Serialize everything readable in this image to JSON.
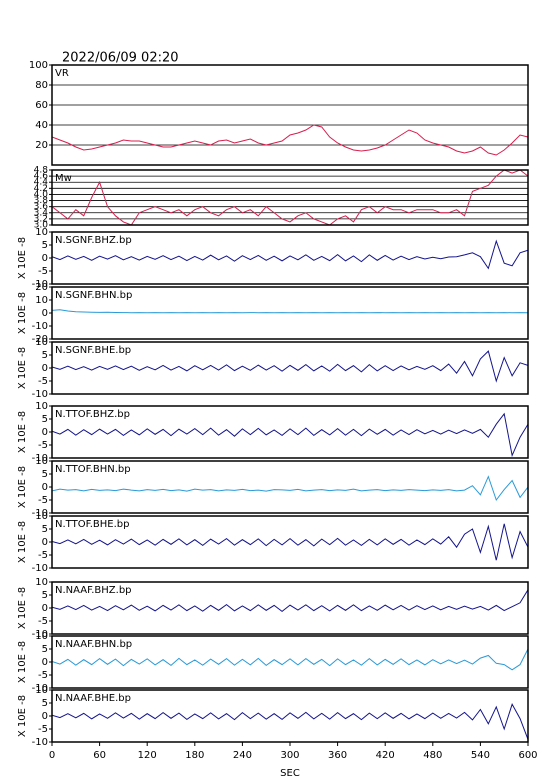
{
  "chart_data": {
    "type": "line",
    "title": "2022/06/09 02:20",
    "xlabel": "SEC",
    "xlim": [
      0,
      600
    ],
    "xticks": [
      0,
      60,
      120,
      180,
      240,
      300,
      360,
      420,
      480,
      540,
      600
    ],
    "x": [
      0,
      10,
      20,
      30,
      40,
      50,
      60,
      70,
      80,
      90,
      100,
      110,
      120,
      130,
      140,
      150,
      160,
      170,
      180,
      190,
      200,
      210,
      220,
      230,
      240,
      250,
      260,
      270,
      280,
      290,
      300,
      310,
      320,
      330,
      340,
      350,
      360,
      370,
      380,
      390,
      400,
      410,
      420,
      430,
      440,
      450,
      460,
      470,
      480,
      490,
      500,
      510,
      520,
      530,
      540,
      550,
      560,
      570,
      580,
      590,
      600
    ],
    "panels": [
      {
        "label": "VR",
        "color": "#d81e4e",
        "ylim": [
          0,
          100
        ],
        "yticks": [
          20,
          40,
          60,
          80,
          100
        ],
        "grid": true,
        "values": [
          28,
          25,
          22,
          18,
          15,
          16,
          18,
          20,
          22,
          25,
          24,
          24,
          22,
          20,
          18,
          18,
          20,
          22,
          24,
          22,
          20,
          24,
          25,
          22,
          24,
          26,
          22,
          20,
          22,
          24,
          30,
          32,
          35,
          40,
          38,
          28,
          22,
          18,
          15,
          14,
          15,
          17,
          20,
          25,
          30,
          35,
          32,
          25,
          22,
          20,
          18,
          14,
          12,
          14,
          18,
          12,
          10,
          15,
          22,
          30,
          28
        ]
      },
      {
        "label": "Mw",
        "color": "#d81e4e",
        "ylim": [
          3.0,
          4.8
        ],
        "yticks": [
          {
            "value": 3,
            "label": "3.0"
          },
          3.2,
          3.4,
          3.6,
          3.8,
          {
            "value": 4,
            "label": "4.0"
          },
          4.2,
          4.4,
          4.6,
          4.8
        ],
        "grid": true,
        "values": [
          3.6,
          3.4,
          3.2,
          3.5,
          3.3,
          3.9,
          4.4,
          3.6,
          3.3,
          3.1,
          3.0,
          3.4,
          3.5,
          3.6,
          3.5,
          3.4,
          3.5,
          3.3,
          3.5,
          3.6,
          3.4,
          3.3,
          3.5,
          3.6,
          3.4,
          3.5,
          3.3,
          3.6,
          3.4,
          3.2,
          3.1,
          3.3,
          3.4,
          3.2,
          3.1,
          3.0,
          3.2,
          3.3,
          3.1,
          3.5,
          3.6,
          3.4,
          3.6,
          3.5,
          3.5,
          3.4,
          3.5,
          3.5,
          3.5,
          3.4,
          3.4,
          3.5,
          3.3,
          4.1,
          4.2,
          4.3,
          4.6,
          4.8,
          4.7,
          4.8,
          4.6
        ]
      },
      {
        "label": "N.SGNF.BHZ.bp",
        "ylabel": "X 10E -8",
        "color": "#14148c",
        "ylim": [
          -10,
          10
        ],
        "yticks": [
          -10,
          -5,
          0,
          5,
          10
        ],
        "grid": false,
        "values": [
          0.5,
          -0.6,
          0.8,
          -0.5,
          0.6,
          -0.9,
          0.7,
          -0.4,
          0.9,
          -0.7,
          0.5,
          -0.8,
          0.6,
          -0.5,
          0.9,
          -0.6,
          0.7,
          -1.0,
          0.6,
          -0.8,
          1.1,
          -0.7,
          0.8,
          -1.2,
          0.9,
          -0.6,
          1.0,
          -0.9,
          0.7,
          -1.1,
          0.8,
          -0.7,
          1.2,
          -0.9,
          0.6,
          -1.0,
          1.3,
          -1.1,
          0.8,
          -1.4,
          1.2,
          -0.9,
          1.0,
          -0.8,
          0.7,
          -0.6,
          0.5,
          -0.4,
          0.3,
          -0.3,
          0.4,
          0.5,
          1.2,
          2.0,
          0.5,
          -4.0,
          6.5,
          -2.0,
          -3.0,
          2.0,
          3.0
        ]
      },
      {
        "label": "N.SGNF.BHN.bp",
        "ylabel": "X 10E -8",
        "color": "#2a9ad8",
        "ylim": [
          -20,
          20
        ],
        "yticks": [
          -20,
          -10,
          0,
          10,
          20
        ],
        "grid": false,
        "values": [
          2.0,
          2.5,
          1.5,
          1.0,
          0.8,
          0.6,
          0.5,
          0.6,
          0.4,
          0.3,
          0.2,
          0.3,
          0.2,
          0.3,
          0.2,
          0.3,
          0.2,
          0.3,
          0.2,
          0.3,
          0.2,
          0.3,
          0.2,
          0.3,
          0.2,
          0.3,
          0.2,
          0.3,
          0.2,
          0.3,
          0.2,
          0.3,
          0.2,
          0.3,
          0.2,
          0.3,
          0.2,
          0.3,
          0.2,
          0.3,
          0.2,
          0.3,
          0.2,
          0.3,
          0.2,
          0.3,
          0.2,
          0.3,
          0.2,
          0.3,
          0.2,
          0.3,
          0.2,
          0.3,
          0.2,
          0.3,
          0.2,
          0.3,
          0.2,
          0.3,
          0.2
        ]
      },
      {
        "label": "N.SGNF.BHE.bp",
        "ylabel": "X 10E -8",
        "color": "#14148c",
        "ylim": [
          -10,
          10
        ],
        "yticks": [
          -10,
          -5,
          0,
          5,
          10
        ],
        "grid": false,
        "values": [
          0.4,
          -0.5,
          0.7,
          -0.6,
          0.5,
          -0.8,
          0.6,
          -0.5,
          0.8,
          -0.6,
          0.7,
          -0.9,
          0.5,
          -0.7,
          1.0,
          -0.8,
          0.6,
          -1.1,
          0.9,
          -0.7,
          1.0,
          -0.8,
          1.2,
          -1.0,
          0.7,
          -0.9,
          1.1,
          -0.8,
          0.9,
          -1.2,
          1.0,
          -0.9,
          1.3,
          -1.1,
          0.8,
          -1.2,
          1.4,
          -1.0,
          0.9,
          -1.5,
          1.3,
          -1.1,
          0.9,
          -1.0,
          0.8,
          -0.7,
          0.6,
          -0.5,
          0.9,
          -1.0,
          1.5,
          -2.0,
          2.5,
          -3.0,
          3.5,
          6.5,
          -5.0,
          4.0,
          -3.0,
          2.0,
          1.0
        ]
      },
      {
        "label": "N.TTOF.BHZ.bp",
        "ylabel": "X 10E -8",
        "color": "#14148c",
        "ylim": [
          -10,
          10
        ],
        "yticks": [
          -10,
          -5,
          0,
          5,
          10
        ],
        "grid": false,
        "values": [
          0.3,
          -0.8,
          1.0,
          -1.2,
          0.9,
          -1.0,
          1.1,
          -0.8,
          1.0,
          -1.3,
          0.8,
          -1.1,
          1.2,
          -0.9,
          1.0,
          -1.4,
          1.1,
          -0.8,
          1.3,
          -1.0,
          1.5,
          -1.2,
          0.9,
          -1.6,
          1.2,
          -1.0,
          1.4,
          -1.1,
          0.8,
          -1.3,
          1.2,
          -1.0,
          1.5,
          -1.3,
          0.9,
          -1.1,
          1.3,
          -1.2,
          1.0,
          -1.4,
          1.1,
          -0.9,
          1.0,
          -1.2,
          0.8,
          -1.0,
          0.9,
          -0.7,
          0.6,
          -0.8,
          0.7,
          -0.6,
          0.8,
          -0.5,
          1.0,
          -2.0,
          3.0,
          7.0,
          -9.0,
          -2.0,
          3.0
        ]
      },
      {
        "label": "N.TTOF.BHN.bp",
        "ylabel": "X 10E -8",
        "color": "#2a9ad8",
        "ylim": [
          -10,
          10
        ],
        "yticks": [
          -10,
          -5,
          0,
          5,
          10
        ],
        "grid": false,
        "values": [
          -1.5,
          -0.8,
          -1.2,
          -1.0,
          -1.5,
          -0.9,
          -1.3,
          -1.1,
          -1.4,
          -0.8,
          -1.2,
          -1.5,
          -1.0,
          -1.3,
          -0.9,
          -1.4,
          -1.1,
          -1.6,
          -0.8,
          -1.2,
          -1.0,
          -1.5,
          -1.1,
          -1.3,
          -0.9,
          -1.4,
          -1.2,
          -1.6,
          -1.0,
          -1.1,
          -1.3,
          -0.9,
          -1.5,
          -1.2,
          -1.0,
          -1.4,
          -1.1,
          -1.3,
          -0.8,
          -1.5,
          -1.2,
          -1.0,
          -1.4,
          -1.1,
          -1.3,
          -1.0,
          -1.2,
          -1.4,
          -1.1,
          -1.3,
          -1.0,
          -1.5,
          -1.2,
          0.5,
          -3.0,
          4.0,
          -5.0,
          -1.0,
          2.5,
          -4.0,
          0.0
        ]
      },
      {
        "label": "N.TTOF.BHE.bp",
        "ylabel": "X 10E -8",
        "color": "#14148c",
        "ylim": [
          -10,
          10
        ],
        "yticks": [
          -10,
          -5,
          0,
          5,
          10
        ],
        "grid": false,
        "values": [
          0.2,
          -0.6,
          0.8,
          -0.7,
          1.0,
          -0.9,
          0.7,
          -1.1,
          0.9,
          -0.8,
          1.1,
          -1.0,
          0.8,
          -1.2,
          1.0,
          -0.9,
          1.2,
          -1.1,
          0.9,
          -1.3,
          1.1,
          -0.8,
          1.3,
          -1.2,
          0.9,
          -1.0,
          1.2,
          -1.4,
          1.0,
          -1.1,
          1.3,
          -1.2,
          0.9,
          -1.5,
          1.1,
          -1.0,
          1.4,
          -1.2,
          0.8,
          -1.3,
          1.0,
          -1.1,
          1.2,
          -0.9,
          1.0,
          -1.2,
          0.8,
          -1.0,
          1.2,
          -0.8,
          2.0,
          -2.0,
          3.0,
          5.0,
          -4.0,
          6.0,
          -7.0,
          7.0,
          -6.0,
          4.0,
          -2.0
        ]
      },
      {
        "label": "N.NAAF.BHZ.bp",
        "ylabel": "X 10E -8",
        "color": "#14148c",
        "ylim": [
          -10,
          10
        ],
        "yticks": [
          -10,
          -5,
          0,
          5,
          10
        ],
        "grid": false,
        "values": [
          0.3,
          -0.5,
          0.8,
          -0.6,
          1.0,
          -0.8,
          0.6,
          -1.0,
          0.9,
          -0.7,
          1.1,
          -0.9,
          0.7,
          -1.1,
          1.0,
          -0.8,
          1.2,
          -1.0,
          0.8,
          -1.2,
          1.0,
          -0.9,
          1.3,
          -1.1,
          0.8,
          -1.0,
          1.2,
          -0.9,
          1.0,
          -1.3,
          1.1,
          -0.8,
          1.2,
          -1.0,
          0.9,
          -1.1,
          1.0,
          -0.9,
          1.2,
          -1.0,
          0.8,
          -0.9,
          1.1,
          -0.7,
          1.0,
          -0.8,
          0.9,
          -0.6,
          0.8,
          -0.7,
          0.6,
          -0.5,
          0.7,
          -0.4,
          0.6,
          -0.8,
          1.0,
          -1.0,
          0.5,
          2.0,
          7.0
        ]
      },
      {
        "label": "N.NAAF.BHN.bp",
        "ylabel": "X 10E -8",
        "color": "#2a9ad8",
        "ylim": [
          -10,
          10
        ],
        "yticks": [
          -10,
          -5,
          0,
          5,
          10
        ],
        "grid": false,
        "values": [
          0.2,
          -0.8,
          1.0,
          -1.2,
          0.9,
          -1.0,
          1.3,
          -0.9,
          1.1,
          -1.4,
          1.0,
          -0.8,
          1.2,
          -1.1,
          0.9,
          -1.3,
          1.4,
          -1.0,
          0.8,
          -1.2,
          1.1,
          -0.9,
          1.3,
          -1.2,
          1.0,
          -1.1,
          1.4,
          -1.3,
          0.9,
          -1.0,
          1.2,
          -1.1,
          1.3,
          -0.9,
          1.0,
          -1.4,
          1.2,
          -1.0,
          0.8,
          -1.2,
          1.3,
          -1.1,
          1.0,
          -0.9,
          1.2,
          -1.0,
          0.8,
          -1.1,
          0.9,
          -0.7,
          0.8,
          -0.6,
          0.7,
          -0.8,
          1.5,
          2.5,
          -0.5,
          -1.0,
          -3.0,
          -1.0,
          5.0
        ]
      },
      {
        "label": "N.NAAF.BHE.bp",
        "ylabel": "X 10E -8",
        "color": "#14148c",
        "ylim": [
          -10,
          10
        ],
        "yticks": [
          -10,
          -5,
          0,
          5,
          10
        ],
        "grid": false,
        "values": [
          0.3,
          -0.6,
          0.9,
          -0.7,
          1.0,
          -1.1,
          0.8,
          -0.9,
          1.2,
          -0.8,
          1.0,
          -1.2,
          0.9,
          -1.0,
          1.3,
          -0.9,
          1.1,
          -1.3,
          0.8,
          -1.0,
          1.2,
          -1.1,
          0.9,
          -1.4,
          1.3,
          -1.0,
          1.1,
          -1.2,
          0.9,
          -1.3,
          1.2,
          -0.9,
          1.4,
          -1.1,
          1.0,
          -1.2,
          1.3,
          -1.0,
          0.9,
          -1.4,
          1.1,
          -1.0,
          1.2,
          -0.9,
          1.0,
          -1.1,
          0.8,
          -1.0,
          1.1,
          -0.9,
          1.0,
          -0.8,
          1.4,
          -1.5,
          2.5,
          -3.0,
          3.5,
          -5.0,
          4.5,
          -1.0,
          -9.0
        ]
      }
    ]
  }
}
